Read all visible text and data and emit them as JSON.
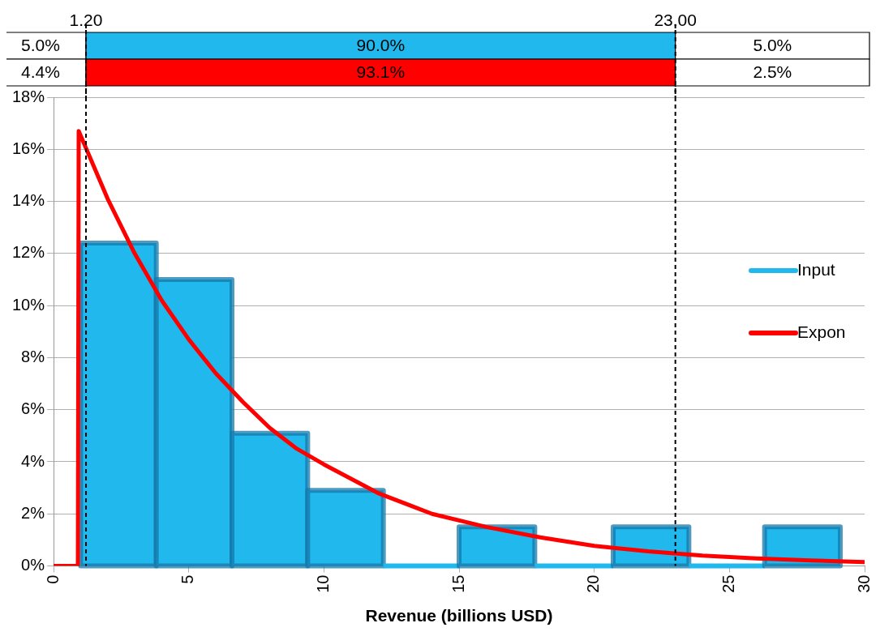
{
  "chart_data": {
    "type": "histogram",
    "xlabel": "Revenue (billions USD)",
    "xlim": [
      0,
      30
    ],
    "xticks": [
      0,
      5,
      10,
      15,
      20,
      25,
      30
    ],
    "ylim": [
      0,
      18
    ],
    "yticks": [
      {
        "value": 0,
        "label": "0%"
      },
      {
        "value": 2,
        "label": "2%"
      },
      {
        "value": 4,
        "label": "4%"
      },
      {
        "value": 6,
        "label": "6%"
      },
      {
        "value": 8,
        "label": "8%"
      },
      {
        "value": 10,
        "label": "10%"
      },
      {
        "value": 12,
        "label": "12%"
      },
      {
        "value": 14,
        "label": "14%"
      },
      {
        "value": 16,
        "label": "16%"
      },
      {
        "value": 18,
        "label": "18%"
      }
    ],
    "grid": "y",
    "legend": "right",
    "series": [
      {
        "name": "Input",
        "type": "histogram",
        "color": "#21b8ee",
        "bins": [
          1.0,
          3.8,
          6.6,
          9.4,
          12.2,
          15.0,
          17.8,
          20.7,
          23.5,
          26.3,
          29.1
        ],
        "values": [
          12.4,
          11.0,
          5.1,
          2.9,
          0,
          1.5,
          0,
          1.5,
          0,
          1.5
        ]
      },
      {
        "name": "Expon",
        "type": "line",
        "color": "#ff0000",
        "x": [
          0,
          0.9,
          0.93,
          2,
          3,
          4,
          5,
          6,
          7,
          8,
          9,
          10,
          12,
          14,
          16,
          18,
          20,
          22,
          24,
          26,
          28,
          30
        ],
        "values": [
          0,
          0,
          16.7,
          14.1,
          12.0,
          10.2,
          8.7,
          7.4,
          6.3,
          5.3,
          4.5,
          3.9,
          2.8,
          2.0,
          1.5,
          1.1,
          0.77,
          0.56,
          0.4,
          0.29,
          0.21,
          0.15
        ]
      }
    ],
    "ref_lines": [
      {
        "axis": "x",
        "value": 1.2,
        "label": "1.20",
        "color": "#000000",
        "line_style": "dashed"
      },
      {
        "axis": "x",
        "value": 23.0,
        "label": "23.00",
        "color": "#000000",
        "line_style": "dashed"
      }
    ],
    "annotations": [
      "5.0%",
      "90.0%",
      "5.0%",
      "4.4%",
      "93.1%",
      "2.5%"
    ]
  }
}
